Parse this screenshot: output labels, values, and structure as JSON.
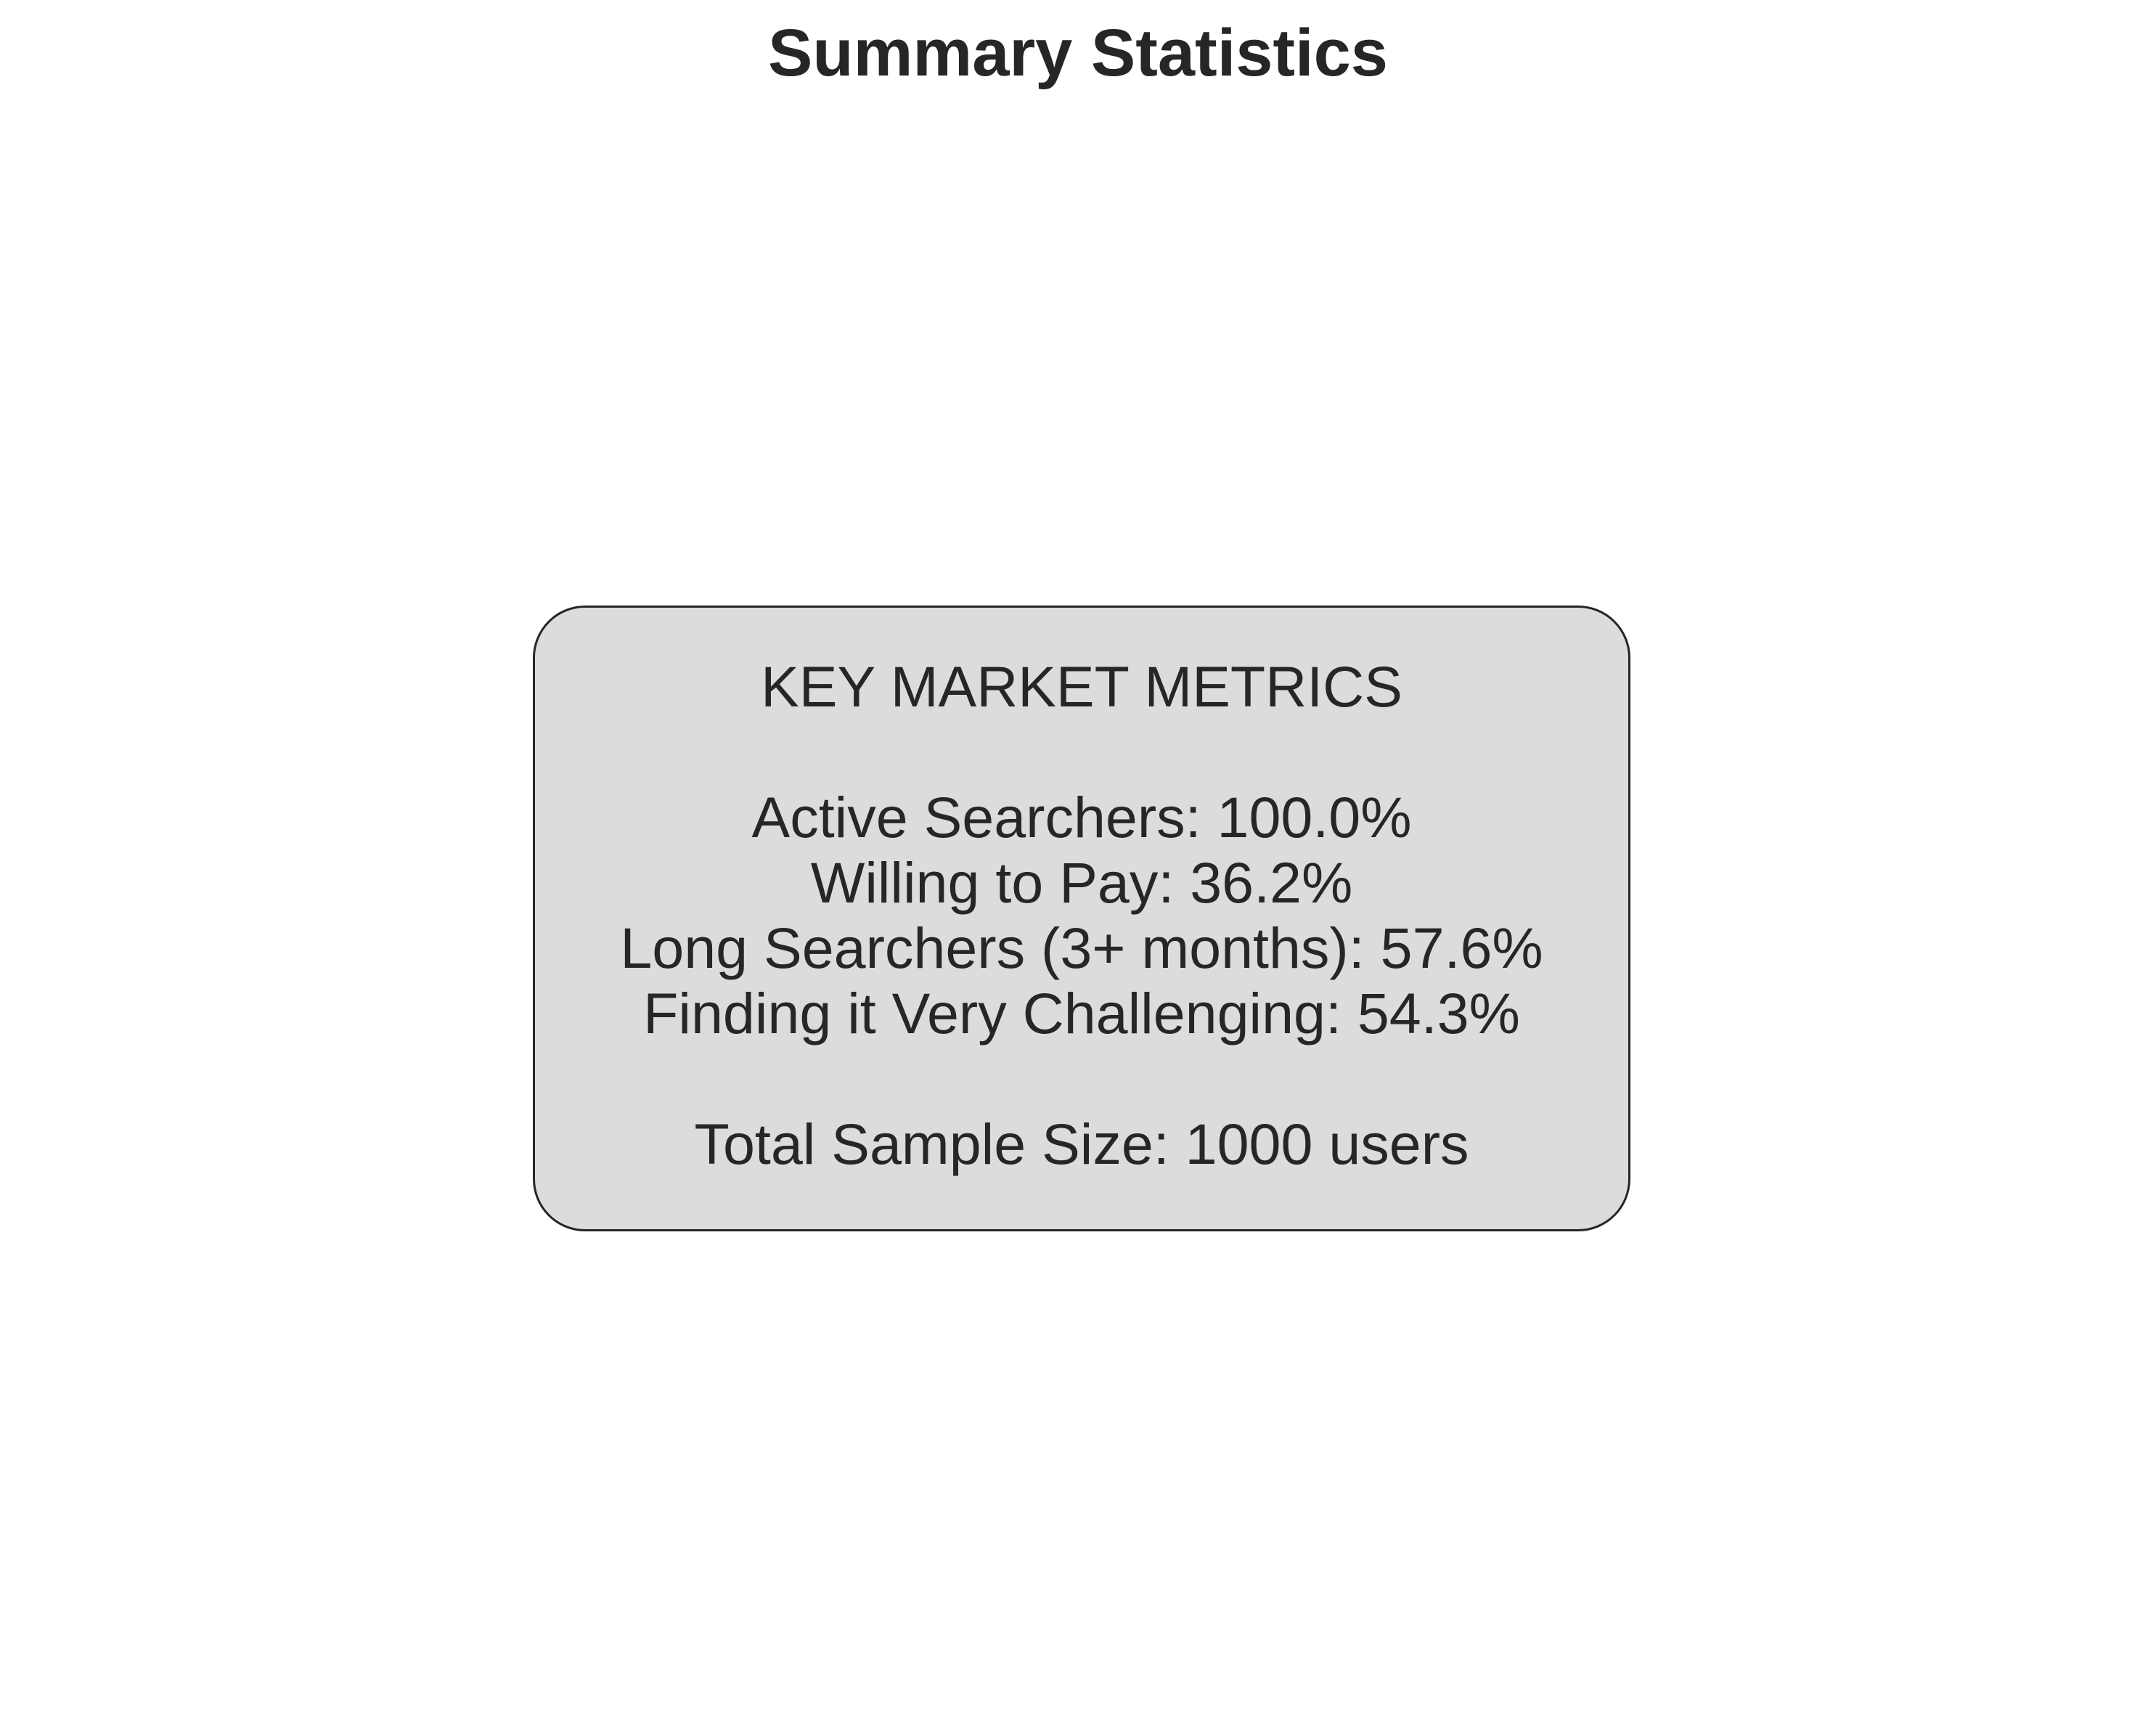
{
  "chart_data": {
    "type": "table",
    "title": "Summary Statistics",
    "box": {
      "heading": "KEY MARKET METRICS",
      "metrics": [
        {
          "label": "Active Searchers",
          "value": 100.0,
          "unit": "%",
          "text": "Active Searchers: 100.0%"
        },
        {
          "label": "Willing to Pay",
          "value": 36.2,
          "unit": "%",
          "text": "Willing to Pay: 36.2%"
        },
        {
          "label": "Long Searchers (3+ months)",
          "value": 57.6,
          "unit": "%",
          "text": "Long Searchers (3+ months): 57.6%"
        },
        {
          "label": "Finding it Very Challenging",
          "value": 54.3,
          "unit": "%",
          "text": "Finding it Very Challenging: 54.3%"
        }
      ],
      "total": {
        "label": "Total Sample Size",
        "value": 1000,
        "unit": "users",
        "text": "Total Sample Size: 1000 users"
      }
    }
  },
  "colors": {
    "text": "#262626",
    "box_fill": "#dcdcdc",
    "box_border": "#262626",
    "background": "#ffffff"
  }
}
